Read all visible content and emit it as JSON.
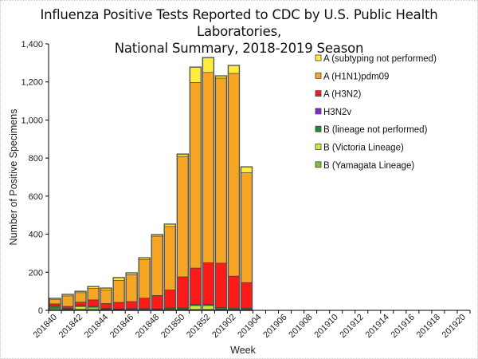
{
  "chart_data": {
    "type": "bar",
    "stacked": true,
    "title_line1": "Influenza Positive Tests Reported to CDC by U.S. Public Health Laboratories,",
    "title_line2": "National Summary, 2018-2019 Season",
    "xlabel": "Week",
    "ylabel": "Number of Positive Specimens",
    "ylim": [
      0,
      1400
    ],
    "yticks": [
      0,
      200,
      400,
      600,
      800,
      1000,
      1200,
      1400
    ],
    "ytick_labels": [
      "0",
      "200",
      "400",
      "600",
      "800",
      "1,000",
      "1,200",
      "1,400"
    ],
    "categories": [
      "201840",
      "201841",
      "201842",
      "201843",
      "201844",
      "201845",
      "201846",
      "201847",
      "201848",
      "201849",
      "201850",
      "201851",
      "201852",
      "201901",
      "201902",
      "201903",
      "201904",
      "201905",
      "201906",
      "201907",
      "201908",
      "201909",
      "201910",
      "201911",
      "201912",
      "201913",
      "201914",
      "201915",
      "201916",
      "201917",
      "201918",
      "201919",
      "201920"
    ],
    "xtick_labels": [
      "201840",
      "201842",
      "201844",
      "201846",
      "201848",
      "201850",
      "201852",
      "201902",
      "201904",
      "201906",
      "201908",
      "201910",
      "201912",
      "201914",
      "201916",
      "201918",
      "201920"
    ],
    "legend_position": "top-right",
    "series": [
      {
        "name": "B (Yamagata Lineage)",
        "color": "#7fbf3f",
        "values": [
          8,
          4,
          6,
          8,
          4,
          3,
          2,
          2,
          2,
          6,
          5,
          5,
          5,
          3,
          2,
          2,
          0,
          0,
          0,
          0,
          0,
          0,
          0,
          0,
          0,
          0,
          0,
          0,
          0,
          0,
          0,
          0,
          0
        ]
      },
      {
        "name": "B (Victoria Lineage)",
        "color": "#ccec3c",
        "values": [
          4,
          2,
          14,
          8,
          2,
          2,
          2,
          2,
          2,
          2,
          3,
          20,
          20,
          2,
          2,
          2,
          0,
          0,
          0,
          0,
          0,
          0,
          0,
          0,
          0,
          0,
          0,
          0,
          0,
          0,
          0,
          0,
          0
        ]
      },
      {
        "name": "B (lineage not performed)",
        "color": "#1e8a3c",
        "values": [
          10,
          5,
          5,
          5,
          4,
          3,
          6,
          6,
          4,
          5,
          5,
          7,
          7,
          10,
          8,
          7,
          0,
          0,
          0,
          0,
          0,
          0,
          0,
          0,
          0,
          0,
          0,
          0,
          0,
          0,
          0,
          0,
          0
        ]
      },
      {
        "name": "H3N2v",
        "color": "#7b2bd3",
        "values": [
          0,
          0,
          0,
          0,
          0,
          0,
          0,
          0,
          0,
          0,
          0,
          0,
          0,
          0,
          0,
          0,
          0,
          0,
          0,
          0,
          0,
          0,
          0,
          0,
          0,
          0,
          0,
          0,
          0,
          0,
          0,
          0,
          0
        ]
      },
      {
        "name": "A (H3N2)",
        "color": "#ff1a1a",
        "values": [
          12,
          10,
          18,
          34,
          26,
          34,
          36,
          54,
          70,
          94,
          163,
          190,
          218,
          233,
          168,
          135,
          0,
          0,
          0,
          0,
          0,
          0,
          0,
          0,
          0,
          0,
          0,
          0,
          0,
          0,
          0,
          0,
          0
        ]
      },
      {
        "name": "A (H1N1)pdm09",
        "color": "#f5a623",
        "values": [
          22,
          55,
          50,
          60,
          71,
          116,
          141,
          203,
          312,
          334,
          633,
          975,
          1000,
          972,
          1065,
          577,
          0,
          0,
          0,
          0,
          0,
          0,
          0,
          0,
          0,
          0,
          0,
          0,
          0,
          0,
          0,
          0,
          0
        ]
      },
      {
        "name": "A (subtyping not performed)",
        "color": "#ffec3c",
        "values": [
          7,
          8,
          7,
          10,
          10,
          14,
          10,
          9,
          8,
          12,
          12,
          81,
          78,
          12,
          42,
          31,
          0,
          0,
          0,
          0,
          0,
          0,
          0,
          0,
          0,
          0,
          0,
          0,
          0,
          0,
          0,
          0,
          0
        ]
      }
    ]
  }
}
